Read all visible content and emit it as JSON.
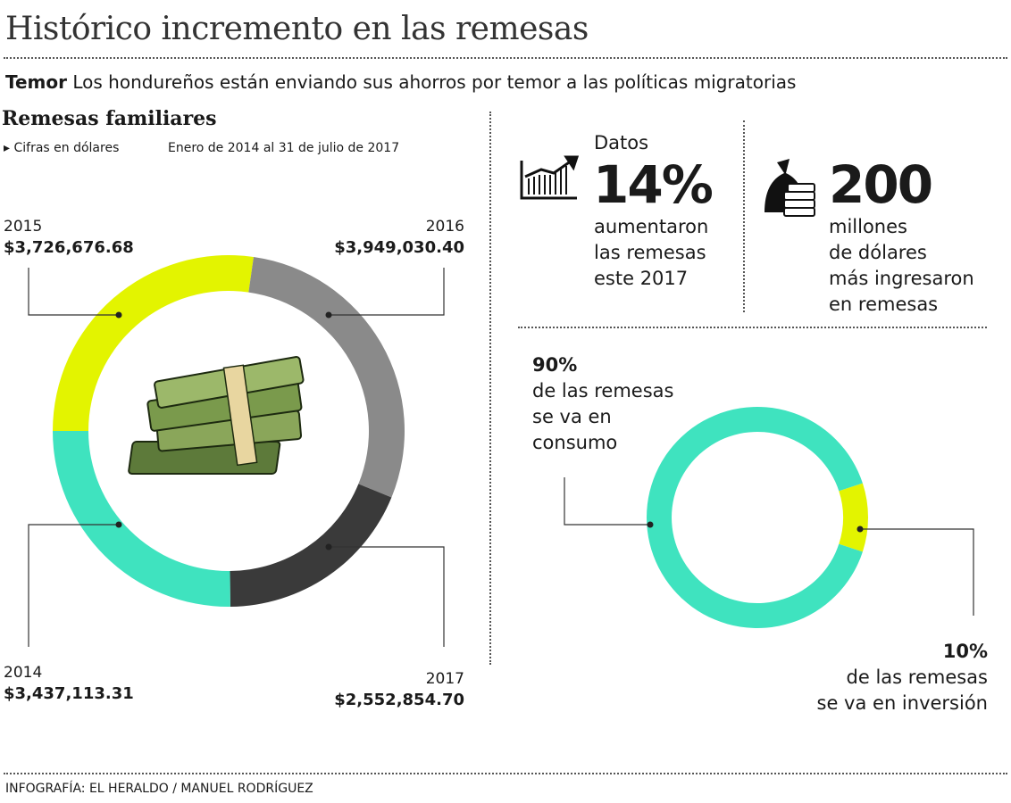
{
  "title": "Histórico incremento en las remesas",
  "subtitle": {
    "lead": "Temor",
    "text": "Los hondureños están enviando sus ahorros por temor a las políticas migratorias"
  },
  "section_title": "Remesas familiares",
  "note_units": "Cifras en dólares",
  "note_period": "Enero de 2014 al 31 de julio de 2017",
  "stats": {
    "datos_label": "Datos",
    "pct": "14%",
    "pct_text": [
      "aumentaron",
      "las remesas",
      "este 2017"
    ],
    "amount": "200",
    "amount_text": [
      "millones",
      "de dólares",
      "más ingresaron",
      "en remesas"
    ]
  },
  "consumo": {
    "pct": "90%",
    "text": [
      "de las remesas",
      "se va en",
      "consumo"
    ]
  },
  "inversion": {
    "pct": "10%",
    "text": [
      "de las remesas",
      "se va en inversión"
    ]
  },
  "credit": "INFOGRAFÍA: EL HERALDO / MANUEL RODRÍGUEZ",
  "chart_data": [
    {
      "type": "pie",
      "donut": true,
      "title": "Remesas familiares",
      "categories": [
        "2015",
        "2016",
        "2017",
        "2014"
      ],
      "labels": [
        "$3,726,676.68",
        "$3,949,030.40",
        "$2,552,854.70",
        "$3,437,113.31"
      ],
      "values": [
        3726676.68,
        3949030.4,
        2552854.7,
        3437113.31
      ],
      "colors": [
        "#e3f400",
        "#8a8a8a",
        "#3a3a3a",
        "#3fe3bf"
      ],
      "unit": "USD"
    },
    {
      "type": "pie",
      "donut": true,
      "categories": [
        "consumo",
        "inversión"
      ],
      "values": [
        90,
        10
      ],
      "colors": [
        "#3fe3bf",
        "#e3f400"
      ]
    }
  ]
}
